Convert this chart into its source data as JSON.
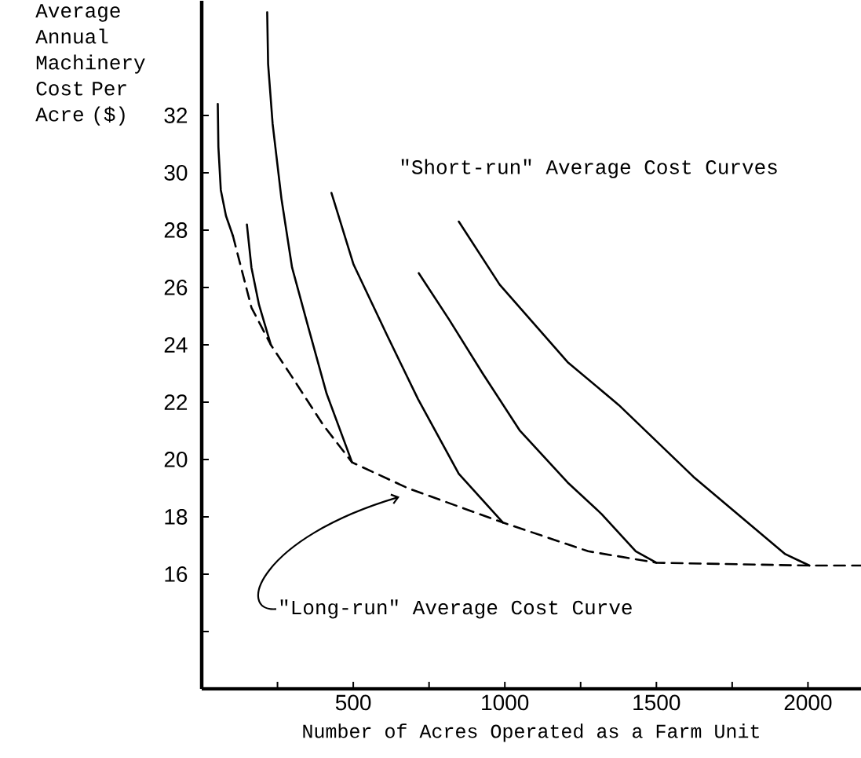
{
  "chart_data": {
    "type": "line",
    "xlabel": "Number of Acres Operated as a Farm Unit",
    "ylabel": "Average Annual Machinery Cost Per Acre ($)",
    "annotations": [
      "\"Short-run\" Average Cost Curves",
      "\"Long-run\" Average Cost Curve"
    ],
    "xlim": [
      0,
      2175
    ],
    "ylim": [
      12,
      36
    ],
    "xticks": [
      {
        "value": 250,
        "label": null
      },
      500,
      {
        "value": 750,
        "label": null
      },
      1000,
      {
        "value": 1250,
        "label": null
      },
      1500,
      {
        "value": 1750,
        "label": null
      },
      2000
    ],
    "yticks": [
      {
        "value": 14,
        "label": null
      },
      16,
      18,
      20,
      22,
      24,
      26,
      28,
      30,
      32
    ],
    "marker": "none",
    "line_style": "solid",
    "series": [
      {
        "color": "#000000",
        "line_style": "dashed",
        "x": [
          103,
          164,
          228,
          303,
          401,
          496,
          680,
          994,
          1275,
          1500,
          2005,
          2175
        ],
        "values": [
          27.8,
          25.3,
          24.0,
          22.8,
          21.2,
          19.9,
          19.0,
          17.8,
          16.8,
          16.4,
          16.3,
          16.3
        ]
      },
      {
        "color": "#000000",
        "x": [
          53,
          55,
          63,
          80,
          103
        ],
        "values": [
          32.4,
          30.9,
          29.4,
          28.5,
          27.8
        ]
      },
      {
        "color": "#000000",
        "x": [
          149,
          164,
          189,
          228
        ],
        "values": [
          28.2,
          26.7,
          25.4,
          24.0
        ]
      },
      {
        "color": "#000000",
        "x": [
          216,
          219,
          234,
          263,
          298,
          352,
          412,
          496
        ],
        "values": [
          35.6,
          33.8,
          31.7,
          29.1,
          26.7,
          24.6,
          22.3,
          19.9
        ]
      },
      {
        "color": "#000000",
        "x": [
          428,
          501,
          613,
          714,
          848,
          994
        ],
        "values": [
          29.3,
          26.8,
          24.3,
          22.1,
          19.5,
          17.8
        ]
      },
      {
        "color": "#000000",
        "x": [
          716,
          815,
          927,
          1050,
          1207,
          1319,
          1432,
          1500
        ],
        "values": [
          26.5,
          24.9,
          23.0,
          21.0,
          19.2,
          18.1,
          16.8,
          16.4
        ]
      },
      {
        "color": "#000000",
        "x": [
          848,
          983,
          1207,
          1376,
          1622,
          1925,
          2005
        ],
        "values": [
          28.3,
          26.1,
          23.4,
          21.9,
          19.4,
          16.7,
          16.3
        ]
      }
    ]
  }
}
